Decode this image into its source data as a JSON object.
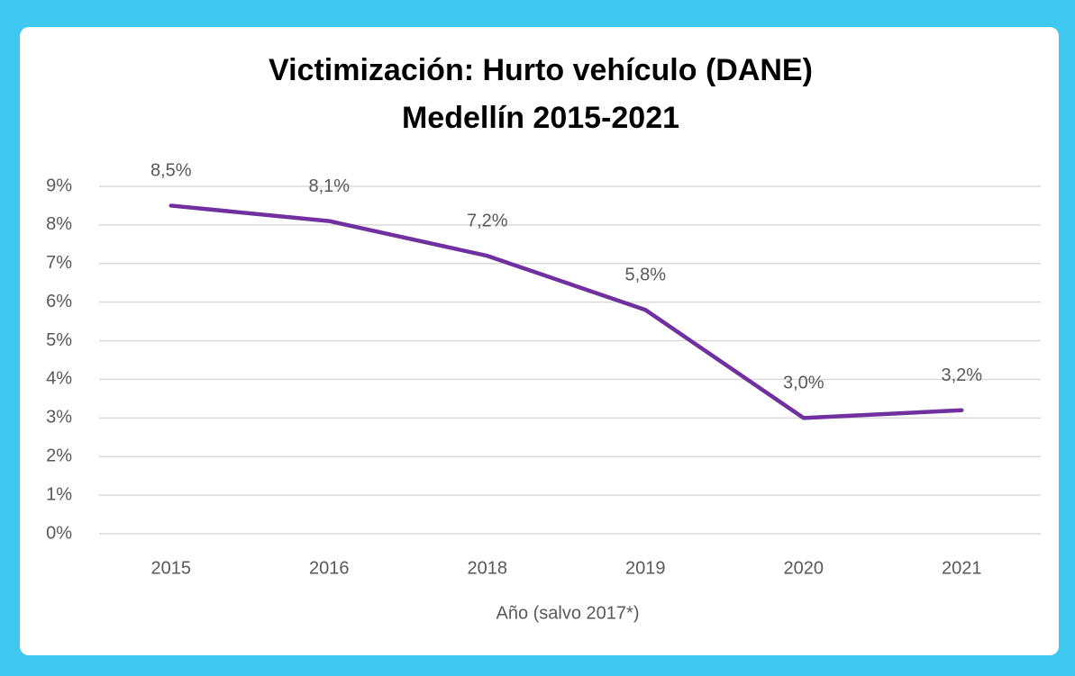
{
  "chart_data": {
    "type": "line",
    "title": "Victimización: Hurto vehículo (DANE)",
    "subtitle": "Medellín 2015-2021",
    "x_label": "Año (salvo 2017*)",
    "categories": [
      "2015",
      "2016",
      "2018",
      "2019",
      "2020",
      "2021"
    ],
    "series": [
      {
        "name": "Hurto vehículo",
        "color": "#7030a0",
        "values": [
          8.5,
          8.1,
          7.2,
          5.8,
          3.0,
          3.2
        ],
        "value_labels": [
          "8,5%",
          "8,1%",
          "7,2%",
          "5,8%",
          "3,0%",
          "3,2%"
        ]
      }
    ],
    "ylim": [
      0,
      9
    ],
    "yticks": [
      {
        "value": 0,
        "label": "0%"
      },
      {
        "value": 1,
        "label": "1%"
      },
      {
        "value": 2,
        "label": "2%"
      },
      {
        "value": 3,
        "label": "3%"
      },
      {
        "value": 4,
        "label": "4%"
      },
      {
        "value": 5,
        "label": "5%"
      },
      {
        "value": 6,
        "label": "6%"
      },
      {
        "value": 7,
        "label": "7%"
      },
      {
        "value": 8,
        "label": "8%"
      },
      {
        "value": 9,
        "label": "9%"
      }
    ],
    "grid": true,
    "legend": false
  }
}
